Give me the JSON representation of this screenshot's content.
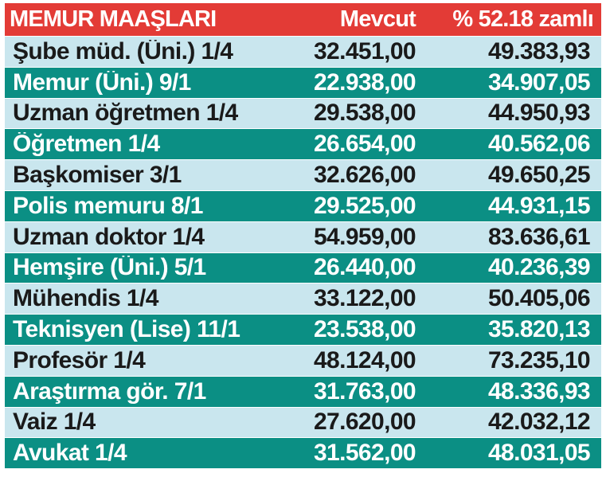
{
  "header": {
    "title": "MEMUR MAAŞLARI",
    "col_current": "Mevcut",
    "col_raised": "% 52.18 zamlı"
  },
  "colors": {
    "header_bg": "#e33b36",
    "row_light": "#c9e6ee",
    "row_dark": "#0b8f84"
  },
  "rows": [
    {
      "title": "Şube müd. (Üni.) 1/4",
      "current": "32.451,00",
      "raised": "49.383,93"
    },
    {
      "title": "Memur (Üni.) 9/1",
      "current": "22.938,00",
      "raised": "34.907,05"
    },
    {
      "title": "Uzman öğretmen 1/4",
      "current": "29.538,00",
      "raised": "44.950,93"
    },
    {
      "title": "Öğretmen 1/4",
      "current": "26.654,00",
      "raised": "40.562,06"
    },
    {
      "title": "Başkomiser 3/1",
      "current": "32.626,00",
      "raised": "49.650,25"
    },
    {
      "title": "Polis memuru 8/1",
      "current": "29.525,00",
      "raised": "44.931,15"
    },
    {
      "title": "Uzman doktor 1/4",
      "current": "54.959,00",
      "raised": "83.636,61"
    },
    {
      "title": "Hemşire (Üni.) 5/1",
      "current": "26.440,00",
      "raised": "40.236,39"
    },
    {
      "title": "Mühendis 1/4",
      "current": "33.122,00",
      "raised": "50.405,06"
    },
    {
      "title": "Teknisyen (Lise) 11/1",
      "current": "23.538,00",
      "raised": "35.820,13"
    },
    {
      "title": "Profesör 1/4",
      "current": "48.124,00",
      "raised": "73.235,10"
    },
    {
      "title": "Araştırma gör. 7/1",
      "current": "31.763,00",
      "raised": "48.336,93"
    },
    {
      "title": "Vaiz 1/4",
      "current": "27.620,00",
      "raised": "42.032,12"
    },
    {
      "title": "Avukat 1/4",
      "current": "31.562,00",
      "raised": "48.031,05"
    }
  ]
}
